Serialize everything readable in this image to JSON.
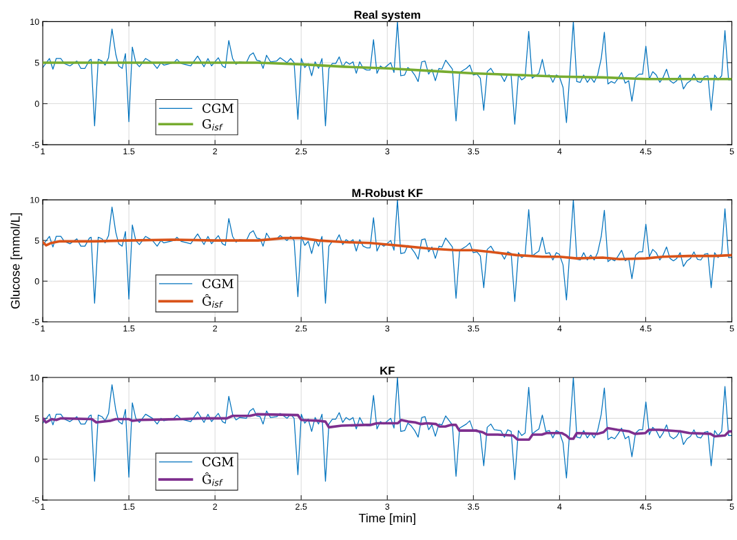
{
  "chart_data": [
    {
      "type": "line",
      "title": "Real system",
      "xlim": [
        1,
        5
      ],
      "ylim": [
        -5,
        10
      ],
      "xticks": [
        1,
        1.5,
        2,
        2.5,
        3,
        3.5,
        4,
        4.5,
        5
      ],
      "yticks": [
        -5,
        0,
        5,
        10
      ],
      "grid": true,
      "legend": "bottom left",
      "series": [
        {
          "name": "CGM",
          "color": "#0072bd",
          "x": [
            1.0,
            1.039,
            1.059,
            1.078,
            1.105,
            1.125,
            1.158,
            1.198,
            1.221,
            1.245,
            1.271,
            1.281,
            1.301,
            1.322,
            1.344,
            1.362,
            1.382,
            1.402,
            1.424,
            1.441,
            1.461,
            1.48,
            1.5,
            1.52,
            1.54,
            1.561,
            1.597,
            1.637,
            1.664,
            1.686,
            1.703,
            1.761,
            1.779,
            1.803,
            1.859,
            1.899,
            1.936,
            1.959,
            1.98,
            2.019,
            2.043,
            2.06,
            2.08,
            2.102,
            2.122,
            2.142,
            2.182,
            2.202,
            2.222,
            2.242,
            2.262,
            2.279,
            2.299,
            2.322,
            2.358,
            2.378,
            2.418,
            2.439,
            2.459,
            2.481,
            2.501,
            2.521,
            2.541,
            2.561,
            2.581,
            2.601,
            2.621,
            2.641,
            2.661,
            2.681,
            2.701,
            2.721,
            2.741,
            2.761,
            2.781,
            2.801,
            2.82,
            2.84,
            2.86,
            2.88,
            2.9,
            2.92,
            2.94,
            2.96,
            2.98,
            3.02,
            3.039,
            3.059,
            3.078,
            3.101,
            3.119,
            3.138,
            3.159,
            3.179,
            3.2,
            3.219,
            3.24,
            3.259,
            3.279,
            3.3,
            3.317,
            3.339,
            3.378,
            3.399,
            3.42,
            3.459,
            3.479,
            3.499,
            3.52,
            3.54,
            3.56,
            3.58,
            3.601,
            3.621,
            3.659,
            3.68,
            3.699,
            3.719,
            3.74,
            3.761,
            3.78,
            3.8,
            3.821,
            3.841,
            3.86,
            3.88,
            3.9,
            3.92,
            3.941,
            3.961,
            3.981,
            3.999,
            4.02,
            4.04,
            4.08,
            4.1,
            4.12,
            4.14,
            4.161,
            4.181,
            4.201,
            4.221,
            4.242,
            4.26,
            4.281,
            4.3,
            4.32,
            4.34,
            4.36,
            4.381,
            4.401,
            4.42,
            4.441,
            4.462,
            4.482,
            4.501,
            4.521,
            4.541,
            4.561,
            4.582,
            4.601,
            4.621,
            4.641,
            4.661,
            4.68,
            4.7,
            4.719,
            4.74,
            4.76,
            4.78,
            4.8,
            4.82,
            4.841,
            4.861,
            4.88,
            4.9,
            4.92,
            4.941,
            4.96,
            4.981,
            5.0
          ],
          "values": [
            4.4,
            5.5,
            4.2,
            5.5,
            5.5,
            4.9,
            4.6,
            5.2,
            4.3,
            4.3,
            5.3,
            5.4,
            -2.7,
            5.4,
            5.2,
            4.7,
            5.6,
            9.1,
            6.0,
            4.6,
            4.3,
            6.1,
            -2.2,
            6.9,
            5.0,
            4.5,
            5.5,
            5.0,
            4.3,
            5.0,
            4.7,
            5.0,
            5.4,
            4.9,
            4.6,
            5.8,
            4.5,
            5.5,
            4.6,
            5.6,
            4.6,
            4.4,
            7.7,
            5.5,
            4.8,
            5.1,
            5.0,
            5.9,
            6.2,
            5.3,
            5.2,
            4.3,
            5.9,
            5.1,
            5.2,
            5.6,
            5.0,
            5.5,
            5.0,
            -1.9,
            5.5,
            4.4,
            4.9,
            3.4,
            5.1,
            4.3,
            5.5,
            -2.7,
            4.3,
            4.9,
            4.9,
            5.7,
            4.5,
            5.1,
            4.8,
            5.1,
            3.7,
            5.1,
            4.3,
            4.1,
            4.1,
            7.8,
            3.7,
            4.6,
            4.3,
            5.0,
            3.8,
            10.0,
            3.4,
            3.5,
            4.4,
            4.1,
            3.5,
            2.7,
            5.1,
            5.2,
            3.6,
            4.2,
            2.8,
            4.3,
            4.2,
            5.3,
            4.2,
            -2.1,
            3.8,
            4.3,
            4.7,
            3.5,
            3.6,
            3.1,
            -0.8,
            3.9,
            4.3,
            3.6,
            3.5,
            2.7,
            3.6,
            3.4,
            -2.5,
            3.5,
            2.9,
            3.2,
            8.8,
            3.1,
            3.4,
            3.7,
            5.4,
            3.4,
            3.5,
            2.6,
            3.5,
            3.3,
            2.0,
            -2.3,
            10.0,
            2.7,
            2.6,
            3.5,
            2.6,
            3.2,
            2.6,
            3.5,
            5.5,
            8.7,
            2.4,
            2.7,
            2.5,
            3.1,
            3.8,
            2.5,
            2.8,
            0.3,
            3.2,
            3.6,
            3.6,
            7.0,
            3.0,
            3.9,
            3.5,
            2.6,
            3.2,
            4.2,
            2.8,
            2.5,
            2.8,
            3.5,
            1.8,
            2.5,
            2.8,
            3.6,
            2.7,
            2.6,
            3.3,
            3.4,
            -0.8,
            3.5,
            2.9,
            3.4,
            8.9,
            2.9,
            2.9
          ]
        },
        {
          "name": "G$_{isf}$",
          "color": "#77ac30",
          "x": [
            1,
            1.5,
            2,
            2.25,
            2.5,
            2.75,
            3,
            3.25,
            3.5,
            3.75,
            4,
            4.25,
            4.5,
            4.75,
            5
          ],
          "values": [
            5.0,
            5.0,
            5.0,
            5.0,
            4.8,
            4.5,
            4.3,
            4.0,
            3.7,
            3.5,
            3.3,
            3.2,
            3.0,
            3.0,
            3.0
          ]
        }
      ]
    },
    {
      "type": "line",
      "title": "M-Robust KF",
      "ylabel": "Glucose [mmol/L]",
      "xlim": [
        1,
        5
      ],
      "ylim": [
        -5,
        10
      ],
      "xticks": [
        1,
        1.5,
        2,
        2.5,
        3,
        3.5,
        4,
        4.5,
        5
      ],
      "yticks": [
        -5,
        0,
        5,
        10
      ],
      "grid": true,
      "legend": "bottom left",
      "series": [
        {
          "name": "CGM",
          "color": "#0072bd",
          "x": [
            1.0,
            1.039,
            1.059,
            1.078,
            1.105,
            1.125,
            1.158,
            1.198,
            1.221,
            1.245,
            1.271,
            1.281,
            1.301,
            1.322,
            1.344,
            1.362,
            1.382,
            1.402,
            1.424,
            1.441,
            1.461,
            1.48,
            1.5,
            1.52,
            1.54,
            1.561,
            1.597,
            1.637,
            1.664,
            1.686,
            1.703,
            1.761,
            1.779,
            1.803,
            1.859,
            1.899,
            1.936,
            1.959,
            1.98,
            2.019,
            2.043,
            2.06,
            2.08,
            2.102,
            2.122,
            2.142,
            2.182,
            2.202,
            2.222,
            2.242,
            2.262,
            2.279,
            2.299,
            2.322,
            2.358,
            2.378,
            2.418,
            2.439,
            2.459,
            2.481,
            2.501,
            2.521,
            2.541,
            2.561,
            2.581,
            2.601,
            2.621,
            2.641,
            2.661,
            2.681,
            2.701,
            2.721,
            2.741,
            2.761,
            2.781,
            2.801,
            2.82,
            2.84,
            2.86,
            2.88,
            2.9,
            2.92,
            2.94,
            2.96,
            2.98,
            3.02,
            3.039,
            3.059,
            3.078,
            3.101,
            3.119,
            3.138,
            3.159,
            3.179,
            3.2,
            3.219,
            3.24,
            3.259,
            3.279,
            3.3,
            3.317,
            3.339,
            3.378,
            3.399,
            3.42,
            3.459,
            3.479,
            3.499,
            3.52,
            3.54,
            3.56,
            3.58,
            3.601,
            3.621,
            3.659,
            3.68,
            3.699,
            3.719,
            3.74,
            3.761,
            3.78,
            3.8,
            3.821,
            3.841,
            3.86,
            3.88,
            3.9,
            3.92,
            3.941,
            3.961,
            3.981,
            3.999,
            4.02,
            4.04,
            4.08,
            4.1,
            4.12,
            4.14,
            4.161,
            4.181,
            4.201,
            4.221,
            4.242,
            4.26,
            4.281,
            4.3,
            4.32,
            4.34,
            4.36,
            4.381,
            4.401,
            4.42,
            4.441,
            4.462,
            4.482,
            4.501,
            4.521,
            4.541,
            4.561,
            4.582,
            4.601,
            4.621,
            4.641,
            4.661,
            4.68,
            4.7,
            4.719,
            4.74,
            4.76,
            4.78,
            4.8,
            4.82,
            4.841,
            4.861,
            4.88,
            4.9,
            4.92,
            4.941,
            4.96,
            4.981,
            5.0
          ],
          "values": [
            4.4,
            5.5,
            4.2,
            5.5,
            5.5,
            4.9,
            4.6,
            5.2,
            4.3,
            4.3,
            5.3,
            5.4,
            -2.7,
            5.4,
            5.2,
            4.7,
            5.6,
            9.1,
            6.0,
            4.6,
            4.3,
            6.1,
            -2.2,
            6.9,
            5.0,
            4.5,
            5.5,
            5.0,
            4.3,
            5.0,
            4.7,
            5.0,
            5.4,
            4.9,
            4.6,
            5.8,
            4.5,
            5.5,
            4.6,
            5.6,
            4.6,
            4.4,
            7.7,
            5.5,
            4.8,
            5.1,
            5.0,
            5.9,
            6.2,
            5.3,
            5.2,
            4.3,
            5.9,
            5.1,
            5.2,
            5.6,
            5.0,
            5.5,
            5.0,
            -1.9,
            5.5,
            4.4,
            4.9,
            3.4,
            5.1,
            4.3,
            5.5,
            -2.7,
            4.3,
            4.9,
            4.9,
            5.7,
            4.5,
            5.1,
            4.8,
            5.1,
            3.7,
            5.1,
            4.3,
            4.1,
            4.1,
            7.8,
            3.7,
            4.6,
            4.3,
            5.0,
            3.8,
            10.0,
            3.4,
            3.5,
            4.4,
            4.1,
            3.5,
            2.7,
            5.1,
            5.2,
            3.6,
            4.2,
            2.8,
            4.3,
            4.2,
            5.3,
            4.2,
            -2.1,
            3.8,
            4.3,
            4.7,
            3.5,
            3.6,
            3.1,
            -0.8,
            3.9,
            4.3,
            3.6,
            3.5,
            2.7,
            3.6,
            3.4,
            -2.5,
            3.5,
            2.9,
            3.2,
            8.8,
            3.1,
            3.4,
            3.7,
            5.4,
            3.4,
            3.5,
            2.6,
            3.5,
            3.3,
            2.0,
            -2.3,
            10.0,
            2.7,
            2.6,
            3.5,
            2.6,
            3.2,
            2.6,
            3.5,
            5.5,
            8.7,
            2.4,
            2.7,
            2.5,
            3.1,
            3.8,
            2.5,
            2.8,
            0.3,
            3.2,
            3.6,
            3.6,
            7.0,
            3.0,
            3.9,
            3.5,
            2.6,
            3.2,
            4.2,
            2.8,
            2.5,
            2.8,
            3.5,
            1.8,
            2.5,
            2.8,
            3.6,
            2.7,
            2.6,
            3.3,
            3.4,
            -0.8,
            3.5,
            2.9,
            3.4,
            8.9,
            2.9,
            2.9
          ]
        },
        {
          "name": "Ĝ$_{isf}$",
          "color": "#d95319",
          "x": [
            1.0,
            1.02,
            1.05,
            1.1,
            1.2,
            1.3,
            1.5,
            1.75,
            2.0,
            2.25,
            2.4,
            2.5,
            2.6,
            2.75,
            2.9,
            3.0,
            3.1,
            3.25,
            3.4,
            3.5,
            3.6,
            3.75,
            3.9,
            4.0,
            4.1,
            4.25,
            4.35,
            4.5,
            4.6,
            4.75,
            4.9,
            5.0
          ],
          "values": [
            4.8,
            4.4,
            4.7,
            4.9,
            4.9,
            4.9,
            5.0,
            5.1,
            5.0,
            5.0,
            5.3,
            5.3,
            5.0,
            4.8,
            4.7,
            4.5,
            4.3,
            4.0,
            3.8,
            3.8,
            3.6,
            3.2,
            3.0,
            3.0,
            2.8,
            2.9,
            2.7,
            2.8,
            3.0,
            3.1,
            3.1,
            3.2
          ]
        }
      ]
    },
    {
      "type": "line",
      "title": "KF",
      "xlabel": "Time [min]",
      "xlim": [
        1,
        5
      ],
      "ylim": [
        -5,
        10
      ],
      "xticks": [
        1,
        1.5,
        2,
        2.5,
        3,
        3.5,
        4,
        4.5,
        5
      ],
      "yticks": [
        -5,
        0,
        5,
        10
      ],
      "grid": true,
      "legend": "bottom left",
      "series": [
        {
          "name": "CGM",
          "color": "#0072bd",
          "x": [
            1.0,
            1.039,
            1.059,
            1.078,
            1.105,
            1.125,
            1.158,
            1.198,
            1.221,
            1.245,
            1.271,
            1.281,
            1.301,
            1.322,
            1.344,
            1.362,
            1.382,
            1.402,
            1.424,
            1.441,
            1.461,
            1.48,
            1.5,
            1.52,
            1.54,
            1.561,
            1.597,
            1.637,
            1.664,
            1.686,
            1.703,
            1.761,
            1.779,
            1.803,
            1.859,
            1.899,
            1.936,
            1.959,
            1.98,
            2.019,
            2.043,
            2.06,
            2.08,
            2.102,
            2.122,
            2.142,
            2.182,
            2.202,
            2.222,
            2.242,
            2.262,
            2.279,
            2.299,
            2.322,
            2.358,
            2.378,
            2.418,
            2.439,
            2.459,
            2.481,
            2.501,
            2.521,
            2.541,
            2.561,
            2.581,
            2.601,
            2.621,
            2.641,
            2.661,
            2.681,
            2.701,
            2.721,
            2.741,
            2.761,
            2.781,
            2.801,
            2.82,
            2.84,
            2.86,
            2.88,
            2.9,
            2.92,
            2.94,
            2.96,
            2.98,
            3.02,
            3.039,
            3.059,
            3.078,
            3.101,
            3.119,
            3.138,
            3.159,
            3.179,
            3.2,
            3.219,
            3.24,
            3.259,
            3.279,
            3.3,
            3.317,
            3.339,
            3.378,
            3.399,
            3.42,
            3.459,
            3.479,
            3.499,
            3.52,
            3.54,
            3.56,
            3.58,
            3.601,
            3.621,
            3.659,
            3.68,
            3.699,
            3.719,
            3.74,
            3.761,
            3.78,
            3.8,
            3.821,
            3.841,
            3.86,
            3.88,
            3.9,
            3.92,
            3.941,
            3.961,
            3.981,
            3.999,
            4.02,
            4.04,
            4.08,
            4.1,
            4.12,
            4.14,
            4.161,
            4.181,
            4.201,
            4.221,
            4.242,
            4.26,
            4.281,
            4.3,
            4.32,
            4.34,
            4.36,
            4.381,
            4.401,
            4.42,
            4.441,
            4.462,
            4.482,
            4.501,
            4.521,
            4.541,
            4.561,
            4.582,
            4.601,
            4.621,
            4.641,
            4.661,
            4.68,
            4.7,
            4.719,
            4.74,
            4.76,
            4.78,
            4.8,
            4.82,
            4.841,
            4.861,
            4.88,
            4.9,
            4.92,
            4.941,
            4.96,
            4.981,
            5.0
          ],
          "values": [
            4.4,
            5.5,
            4.2,
            5.5,
            5.5,
            4.9,
            4.6,
            5.2,
            4.3,
            4.3,
            5.3,
            5.4,
            -2.7,
            5.4,
            5.2,
            4.7,
            5.6,
            9.1,
            6.0,
            4.6,
            4.3,
            6.1,
            -2.2,
            6.9,
            5.0,
            4.5,
            5.5,
            5.0,
            4.3,
            5.0,
            4.7,
            5.0,
            5.4,
            4.9,
            4.6,
            5.8,
            4.5,
            5.5,
            4.6,
            5.6,
            4.6,
            4.4,
            7.7,
            5.5,
            4.8,
            5.1,
            5.0,
            5.9,
            6.2,
            5.3,
            5.2,
            4.3,
            5.9,
            5.1,
            5.2,
            5.6,
            5.0,
            5.5,
            5.0,
            -1.9,
            5.5,
            4.4,
            4.9,
            3.4,
            5.1,
            4.3,
            5.5,
            -2.7,
            4.3,
            4.9,
            4.9,
            5.7,
            4.5,
            5.1,
            4.8,
            5.1,
            3.7,
            5.1,
            4.3,
            4.1,
            4.1,
            7.8,
            3.7,
            4.6,
            4.3,
            5.0,
            3.8,
            10.0,
            3.4,
            3.5,
            4.4,
            4.1,
            3.5,
            2.7,
            5.1,
            5.2,
            3.6,
            4.2,
            2.8,
            4.3,
            4.2,
            5.3,
            4.2,
            -2.1,
            3.8,
            4.3,
            4.7,
            3.5,
            3.6,
            3.1,
            -0.8,
            3.9,
            4.3,
            3.6,
            3.5,
            2.7,
            3.6,
            3.4,
            -2.5,
            3.5,
            2.9,
            3.2,
            8.8,
            3.1,
            3.4,
            3.7,
            5.4,
            3.4,
            3.5,
            2.6,
            3.5,
            3.3,
            2.0,
            -2.3,
            10.0,
            2.7,
            2.6,
            3.5,
            2.6,
            3.2,
            2.6,
            3.5,
            5.5,
            8.7,
            2.4,
            2.7,
            2.5,
            3.1,
            3.8,
            2.5,
            2.8,
            0.3,
            3.2,
            3.6,
            3.6,
            7.0,
            3.0,
            3.9,
            3.5,
            2.6,
            3.2,
            4.2,
            2.8,
            2.5,
            2.8,
            3.5,
            1.8,
            2.5,
            2.8,
            3.6,
            2.7,
            2.6,
            3.3,
            3.4,
            -0.8,
            3.5,
            2.9,
            3.4,
            8.9,
            2.9,
            2.9
          ]
        },
        {
          "name": "Ĝ$_{isf}$",
          "color": "#7e2f8e",
          "x": [
            1.0,
            1.019,
            1.052,
            1.078,
            1.105,
            1.285,
            1.311,
            1.391,
            1.424,
            1.5,
            1.52,
            1.564,
            1.803,
            1.923,
            2.069,
            2.102,
            2.202,
            2.242,
            2.481,
            2.501,
            2.601,
            2.641,
            2.661,
            2.734,
            2.88,
            2.906,
            2.939,
            3.061,
            3.081,
            3.121,
            3.162,
            3.196,
            3.229,
            3.283,
            3.304,
            3.337,
            3.371,
            3.398,
            3.418,
            3.513,
            3.553,
            3.58,
            3.641,
            3.729,
            3.756,
            3.823,
            3.843,
            3.897,
            3.924,
            4.012,
            4.039,
            4.059,
            4.08,
            4.1,
            4.221,
            4.255,
            4.279,
            4.336,
            4.404,
            4.437,
            4.498,
            4.518,
            4.579,
            4.7,
            4.754,
            4.876,
            4.9,
            4.96,
            4.984,
            5.0
          ],
          "values": [
            5.0,
            4.5,
            4.9,
            4.8,
            5.0,
            4.9,
            4.5,
            4.7,
            4.9,
            4.9,
            4.7,
            4.8,
            4.9,
            5.0,
            5.0,
            5.3,
            5.3,
            5.5,
            5.4,
            4.8,
            4.7,
            4.6,
            3.9,
            4.1,
            4.2,
            4.2,
            4.4,
            4.4,
            4.8,
            4.6,
            4.5,
            4.3,
            4.4,
            4.3,
            4.0,
            4.0,
            4.2,
            4.2,
            3.5,
            3.5,
            3.3,
            3.0,
            3.0,
            2.9,
            2.4,
            2.4,
            3.0,
            3.0,
            3.2,
            3.2,
            2.9,
            2.5,
            2.5,
            3.2,
            3.1,
            3.3,
            3.8,
            3.6,
            3.4,
            3.1,
            3.2,
            3.6,
            3.6,
            3.4,
            3.2,
            3.1,
            2.8,
            2.9,
            3.4,
            3.4
          ]
        }
      ]
    }
  ]
}
